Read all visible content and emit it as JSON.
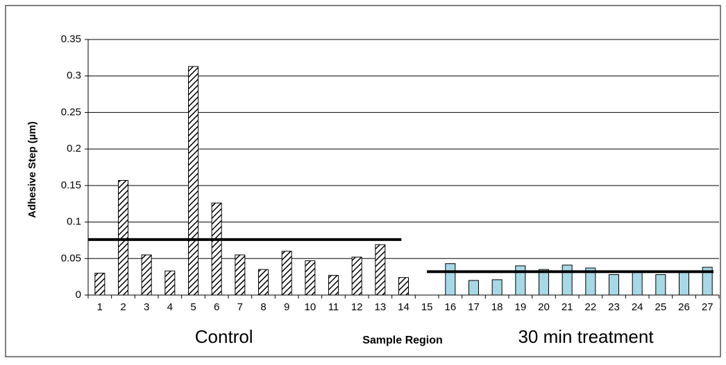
{
  "chart_data": {
    "type": "bar",
    "y_label": "Adhesive Step (µm)",
    "x_label": "Sample Region",
    "categories": [
      "1",
      "2",
      "3",
      "4",
      "5",
      "6",
      "7",
      "8",
      "9",
      "10",
      "11",
      "12",
      "13",
      "14",
      "15",
      "16",
      "17",
      "18",
      "19",
      "20",
      "21",
      "22",
      "23",
      "24",
      "25",
      "26",
      "27"
    ],
    "series": [
      {
        "name": "Control",
        "color": "#000000",
        "pattern": "hatch",
        "mean": 0.076,
        "values": [
          0.03,
          0.157,
          0.055,
          0.033,
          0.313,
          0.126,
          0.055,
          0.035,
          0.06,
          0.047,
          0.027,
          0.052,
          0.069,
          0.024,
          null,
          null,
          null,
          null,
          null,
          null,
          null,
          null,
          null,
          null,
          null,
          null,
          null
        ]
      },
      {
        "name": "30 min treatment",
        "color": "#a6d8e6",
        "mean": 0.032,
        "values": [
          null,
          null,
          null,
          null,
          null,
          null,
          null,
          null,
          null,
          null,
          null,
          null,
          null,
          null,
          null,
          0.043,
          0.02,
          0.021,
          0.04,
          0.035,
          0.041,
          0.037,
          0.028,
          0.031,
          0.028,
          0.031,
          0.038
        ]
      }
    ],
    "ylim": [
      0,
      0.35
    ],
    "yticks": [
      0,
      0.05,
      0.1,
      0.15,
      0.2,
      0.25,
      0.3,
      0.35
    ],
    "grid": true
  }
}
